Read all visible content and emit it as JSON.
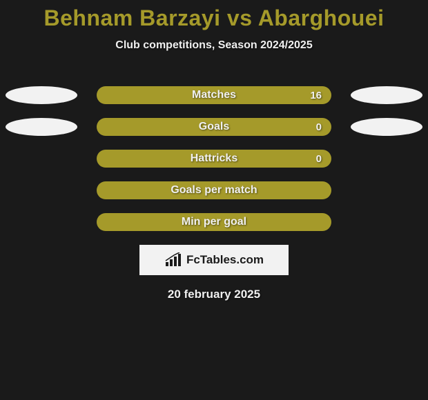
{
  "colors": {
    "background": "#1a1a1a",
    "accent": "#a59a2a",
    "ellipse": "#f2f2f2",
    "text_light": "#f0f0f0",
    "text_on_bar": "#f0f0f0",
    "logo_bg": "#f2f2f2"
  },
  "header": {
    "title_part1": "Behnam Barzayi",
    "title_vs": "vs",
    "title_part2": "Abarghouei",
    "subtitle": "Club competitions, Season 2024/2025"
  },
  "stats": [
    {
      "label": "Matches",
      "value_right": "16",
      "show_left_ellipse": true,
      "show_right_ellipse": true
    },
    {
      "label": "Goals",
      "value_right": "0",
      "show_left_ellipse": true,
      "show_right_ellipse": true
    },
    {
      "label": "Hattricks",
      "value_right": "0",
      "show_left_ellipse": false,
      "show_right_ellipse": false
    },
    {
      "label": "Goals per match",
      "value_right": "",
      "show_left_ellipse": false,
      "show_right_ellipse": false
    },
    {
      "label": "Min per goal",
      "value_right": "",
      "show_left_ellipse": false,
      "show_right_ellipse": false
    }
  ],
  "logo": {
    "text": "FcTables.com"
  },
  "footer": {
    "date": "20 february 2025"
  },
  "typography": {
    "title_fontsize": 32,
    "subtitle_fontsize": 16,
    "bar_label_fontsize": 16,
    "date_fontsize": 17
  }
}
